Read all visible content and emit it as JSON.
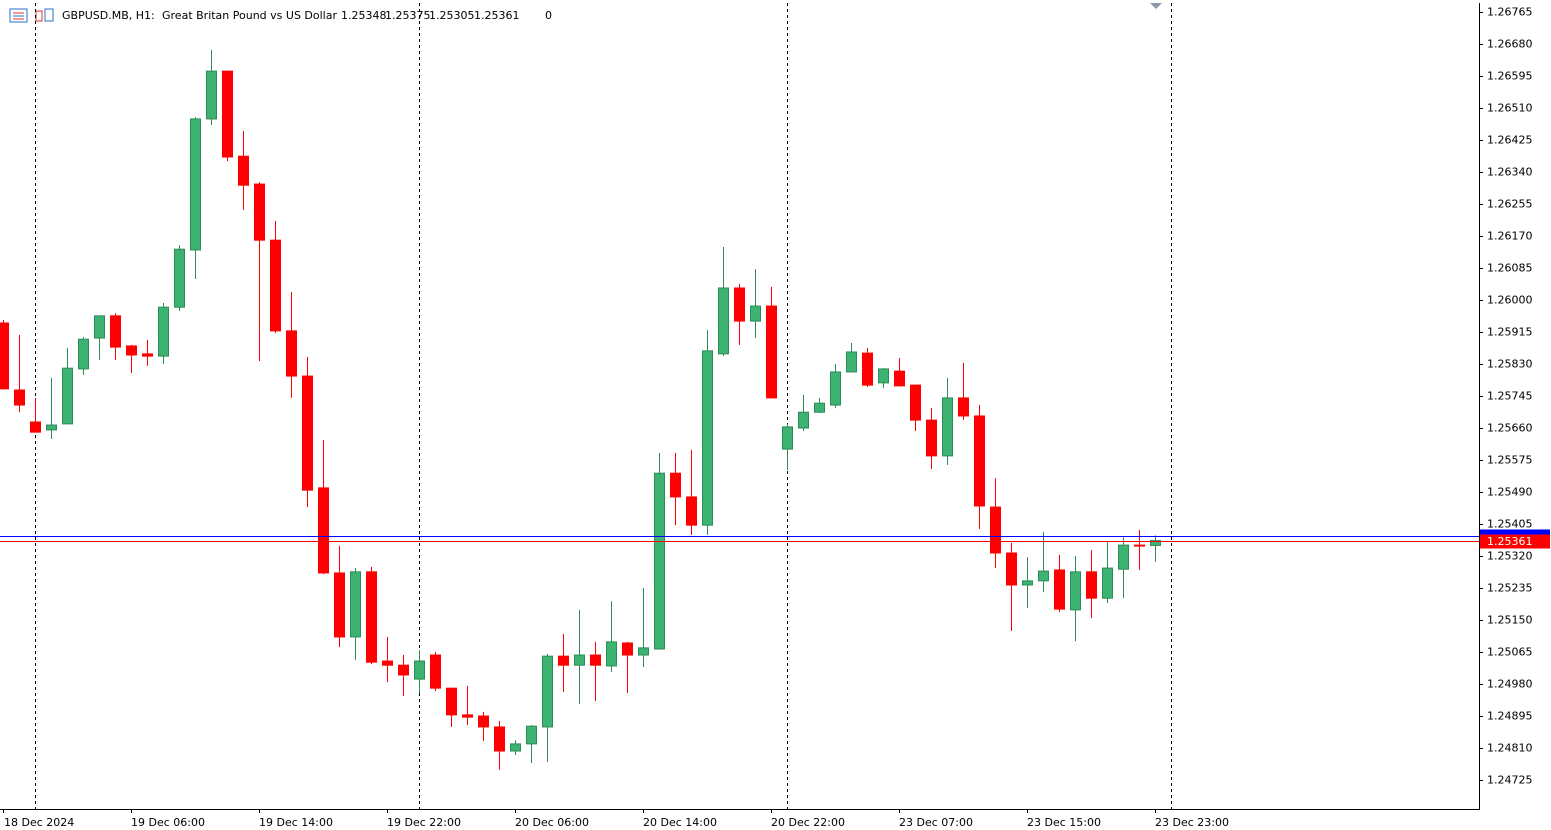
{
  "chart_data": {
    "type": "candlestick",
    "symbol": "GBPUSD.MB, H1:",
    "description": "Great Britan Pound vs US Dollar",
    "info": 0,
    "categories": [
      "18 Dec 2024",
      null,
      null,
      null,
      null,
      null,
      null,
      null,
      "19 Dec 06:00",
      null,
      null,
      null,
      null,
      null,
      null,
      null,
      "19 Dec 14:00",
      null,
      null,
      null,
      null,
      null,
      null,
      null,
      "19 Dec 22:00",
      null,
      null,
      null,
      null,
      null,
      null,
      null,
      "20 Dec 06:00",
      null,
      null,
      null,
      null,
      null,
      null,
      null,
      "20 Dec 14:00",
      null,
      null,
      null,
      null,
      null,
      null,
      null,
      "20 Dec 22:00",
      null,
      null,
      null,
      null,
      null,
      null,
      null,
      "23 Dec 07:00",
      null,
      null,
      null,
      null,
      null,
      null,
      null,
      "23 Dec 15:00",
      null,
      null,
      null,
      null,
      null,
      null,
      null,
      "23 Dec 23:00"
    ],
    "open": [
      1.25939,
      1.25761,
      1.25676,
      1.25655,
      1.25671,
      1.25817,
      1.25899,
      1.25958,
      1.25878,
      1.25857,
      1.25851,
      1.25981,
      1.26133,
      1.26481,
      1.26608,
      1.26382,
      1.26308,
      1.26159,
      1.25918,
      1.25798,
      1.25501,
      1.25275,
      1.25105,
      1.25278,
      1.25041,
      1.2503,
      1.24993,
      1.25057,
      1.24969,
      1.24898,
      1.24895,
      1.24866,
      1.24802,
      1.24821,
      1.24866,
      1.25054,
      1.2503,
      1.25057,
      1.25028,
      1.25089,
      1.25057,
      1.25073,
      1.2554,
      1.25477,
      1.25402,
      1.25857,
      1.26032,
      1.25944,
      1.25984,
      1.25604,
      1.2566,
      1.25702,
      1.25721,
      1.25809,
      1.25859,
      1.2578,
      1.25811,
      1.25774,
      1.25681,
      1.25586,
      1.2574,
      1.25692,
      1.2545,
      1.25328,
      1.25243,
      1.25254,
      1.25283,
      1.25177,
      1.25278,
      1.25208,
      1.25285,
      1.25349,
      1.25348
    ],
    "high": [
      1.25947,
      1.25907,
      1.2574,
      1.25793,
      1.25873,
      1.25902,
      1.25958,
      1.25965,
      1.25881,
      1.25894,
      1.25992,
      1.26146,
      1.26486,
      1.26664,
      1.26608,
      1.26449,
      1.26313,
      1.2621,
      1.26021,
      1.25849,
      1.25628,
      1.25347,
      1.25288,
      1.25291,
      1.25105,
      1.25057,
      1.2507,
      1.25065,
      1.24969,
      1.24975,
      1.24906,
      1.24882,
      1.24831,
      1.24871,
      1.2506,
      1.25113,
      1.25177,
      1.25092,
      1.252,
      1.25092,
      1.25235,
      1.25594,
      1.25594,
      1.25602,
      1.2592,
      1.26141,
      1.26043,
      1.26082,
      1.26035,
      1.25671,
      1.25748,
      1.2574,
      1.2583,
      1.25886,
      1.25873,
      1.25819,
      1.25846,
      1.25774,
      1.25713,
      1.25793,
      1.25833,
      1.25721,
      1.25527,
      1.25355,
      1.25317,
      1.25384,
      1.25323,
      1.2532,
      1.25336,
      1.25357,
      1.2537,
      1.25389,
      1.25375
    ],
    "low": [
      1.25764,
      1.25702,
      1.25649,
      1.25631,
      1.25671,
      1.25801,
      1.25841,
      1.25841,
      1.25806,
      1.25825,
      1.2583,
      1.25971,
      1.26056,
      1.26465,
      1.26369,
      1.26239,
      1.25838,
      1.25912,
      1.2574,
      1.2545,
      1.25272,
      1.25078,
      1.25044,
      1.25033,
      1.24985,
      1.24948,
      1.24956,
      1.24961,
      1.24866,
      1.24871,
      1.24829,
      1.24752,
      1.24791,
      1.2477,
      1.24773,
      1.24959,
      1.24927,
      1.24935,
      1.25012,
      1.24956,
      1.25025,
      1.25073,
      1.25402,
      1.25376,
      1.25376,
      1.25851,
      1.25881,
      1.25899,
      1.2574,
      1.25548,
      1.25652,
      1.257,
      1.25713,
      1.25809,
      1.25769,
      1.25766,
      1.25772,
      1.25652,
      1.25551,
      1.25562,
      1.25681,
      1.25392,
      1.25288,
      1.25121,
      1.25182,
      1.25224,
      1.25171,
      1.25094,
      1.25155,
      1.25195,
      1.25208,
      1.25283,
      1.25305
    ],
    "close": [
      1.25764,
      1.25721,
      1.25649,
      1.25668,
      1.25819,
      1.25896,
      1.25958,
      1.25875,
      1.25854,
      1.25851,
      1.25981,
      1.26135,
      1.26481,
      1.26608,
      1.2638,
      1.26305,
      1.26159,
      1.25918,
      1.25798,
      1.25495,
      1.25275,
      1.25105,
      1.25278,
      1.25038,
      1.2503,
      1.25004,
      1.25041,
      1.24969,
      1.24898,
      1.24892,
      1.24866,
      1.24802,
      1.24821,
      1.24868,
      1.25054,
      1.2503,
      1.25057,
      1.2503,
      1.25092,
      1.25057,
      1.25076,
      1.2554,
      1.25477,
      1.25402,
      1.25865,
      1.26032,
      1.25944,
      1.25984,
      1.2574,
      1.25663,
      1.25702,
      1.25726,
      1.25809,
      1.25862,
      1.25774,
      1.25817,
      1.25772,
      1.25681,
      1.25586,
      1.2574,
      1.25692,
      1.25453,
      1.25328,
      1.25243,
      1.25254,
      1.2528,
      1.25179,
      1.25278,
      1.25208,
      1.25288,
      1.25349,
      1.25347,
      1.25361
    ],
    "up_color": "#3cb371",
    "down_color": "#ff0000",
    "price_lines": [
      {
        "value": 1.25373,
        "color": "#0000ff"
      },
      {
        "value": 1.25361,
        "color": "#ff0000"
      }
    ],
    "ylim": [
      1.24648,
      1.26789
    ],
    "yticks": [
      1.26765,
      {
        "value": 1.2668,
        "label": "1.26680"
      },
      1.26595,
      {
        "value": 1.2651,
        "label": "1.26510"
      },
      1.26425,
      {
        "value": 1.2634,
        "label": "1.26340"
      },
      1.26255,
      {
        "value": 1.2617,
        "label": "1.26170"
      },
      1.26085,
      {
        "value": 1.26,
        "label": "1.26000"
      },
      1.25915,
      {
        "value": 1.2583,
        "label": "1.25830"
      },
      1.25745,
      {
        "value": 1.2566,
        "label": "1.25660"
      },
      1.25575,
      {
        "value": 1.2549,
        "label": "1.25490"
      },
      1.25405,
      {
        "value": 1.2532,
        "label": "1.25320"
      },
      1.25235,
      {
        "value": 1.2515,
        "label": "1.25150"
      },
      1.25065,
      {
        "value": 1.2498,
        "label": "1.24980"
      },
      1.24895,
      {
        "value": 1.2481,
        "label": "1.24810"
      },
      1.24725
    ]
  }
}
